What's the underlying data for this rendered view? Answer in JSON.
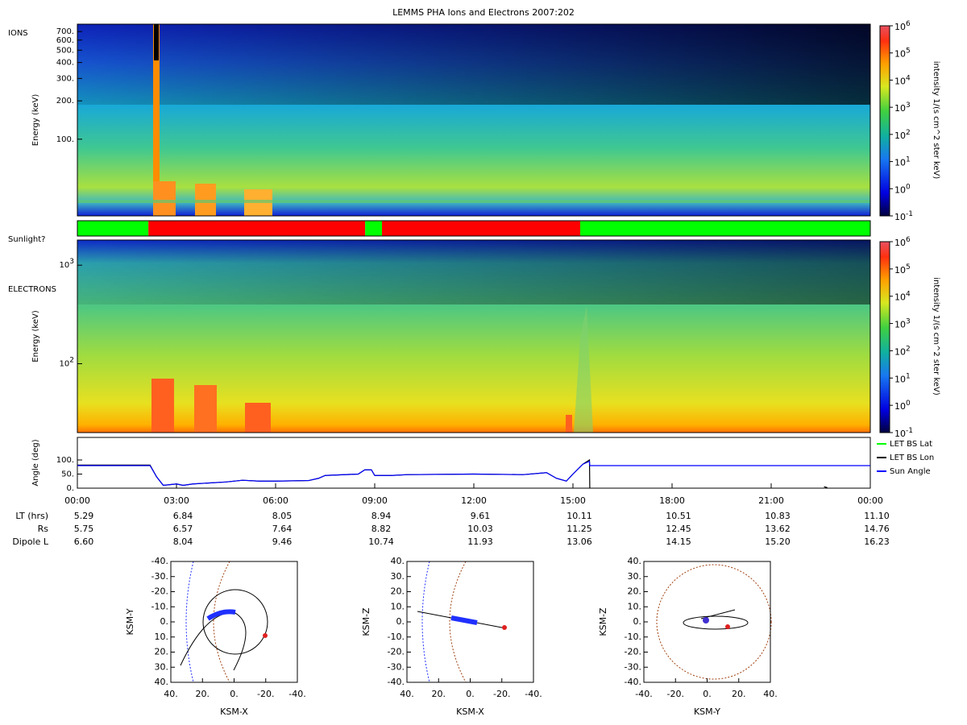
{
  "title": "LEMMS PHA Ions and Electrons  2007:202",
  "chart_data": [
    {
      "type": "spectrogram",
      "panel_label": "IONS",
      "ylabel": "Energy (keV)",
      "log_scale": true,
      "ylim": [
        25,
        800
      ],
      "yticks": [
        {
          "value": 100,
          "label": "100."
        },
        {
          "value": 200,
          "label": "200."
        },
        {
          "value": 300,
          "label": "300."
        },
        {
          "value": 400,
          "label": "400."
        },
        {
          "value": 500,
          "label": "500."
        },
        {
          "value": 600,
          "label": "600."
        },
        {
          "value": 700,
          "label": "700."
        }
      ],
      "colorbar": {
        "label": "intensity 1/(s cm^2 ster keV)",
        "log_scale": true,
        "lim": [
          0.1,
          1000000
        ],
        "ticks": [
          {
            "value": 0.1,
            "label": "10^-1"
          },
          {
            "value": 1,
            "label": "10^0"
          },
          {
            "value": 10,
            "label": "10^1"
          },
          {
            "value": 100,
            "label": "10^2"
          },
          {
            "value": 1000,
            "label": "10^3"
          },
          {
            "value": 10000,
            "label": "10^4"
          },
          {
            "value": 100000,
            "label": "10^5"
          },
          {
            "value": 1000000,
            "label": "10^6"
          }
        ]
      }
    },
    {
      "type": "status_bar",
      "label": "Sunlight?",
      "xlim": [
        0,
        24
      ],
      "segments": [
        {
          "start": 0,
          "end": 2.15,
          "color": "#00ff00"
        },
        {
          "start": 2.15,
          "end": 8.71,
          "color": "#ff0000"
        },
        {
          "start": 8.71,
          "end": 9.22,
          "color": "#00ff00"
        },
        {
          "start": 9.22,
          "end": 15.22,
          "color": "#ff0000"
        },
        {
          "start": 15.22,
          "end": 24,
          "color": "#00ff00"
        }
      ]
    },
    {
      "type": "spectrogram",
      "panel_label": "ELECTRONS",
      "ylabel": "Energy (keV)",
      "log_scale": true,
      "ylim": [
        20,
        1800
      ],
      "yticks": [
        {
          "value": 100,
          "label": "10^2"
        },
        {
          "value": 1000,
          "label": "10^3"
        }
      ],
      "colorbar": {
        "label": "intensity 1/(s cm^2 ster keV)",
        "log_scale": true,
        "lim": [
          0.1,
          1000000
        ],
        "ticks": [
          {
            "value": 0.1,
            "label": "10^-1"
          },
          {
            "value": 1,
            "label": "10^0"
          },
          {
            "value": 10,
            "label": "10^1"
          },
          {
            "value": 100,
            "label": "10^2"
          },
          {
            "value": 1000,
            "label": "10^3"
          },
          {
            "value": 10000,
            "label": "10^4"
          },
          {
            "value": 100000,
            "label": "10^5"
          },
          {
            "value": 1000000,
            "label": "10^6"
          }
        ]
      }
    },
    {
      "type": "line",
      "ylabel": "Angle (deg)",
      "xlim": [
        0,
        24
      ],
      "ylim": [
        0,
        180
      ],
      "yticks": [
        {
          "value": 0,
          "label": "0."
        },
        {
          "value": 50,
          "label": "50."
        },
        {
          "value": 100,
          "label": "100."
        }
      ],
      "xticks": [
        {
          "value": 0,
          "label": "00:00"
        },
        {
          "value": 3,
          "label": "03:00"
        },
        {
          "value": 6,
          "label": "06:00"
        },
        {
          "value": 9,
          "label": "09:00"
        },
        {
          "value": 12,
          "label": "12:00"
        },
        {
          "value": 15,
          "label": "15:00"
        },
        {
          "value": 18,
          "label": "18:00"
        },
        {
          "value": 21,
          "label": "21:00"
        },
        {
          "value": 24,
          "label": "00:00"
        }
      ],
      "legend": "right",
      "x": [
        0,
        2.2,
        2.4,
        2.6,
        3.0,
        3.2,
        3.5,
        4.5,
        5.0,
        5.5,
        6.0,
        7.0,
        7.3,
        7.5,
        8.5,
        8.7,
        8.9,
        9.0,
        9.5,
        10,
        12,
        13.5,
        14.2,
        14.5,
        14.8,
        15.0,
        15.3,
        15.5,
        15.51,
        20,
        22.6,
        22.7,
        24
      ],
      "series": [
        {
          "name": "LET BS Lat",
          "color": "#00ff00",
          "values": [
            null,
            null,
            null,
            null,
            null,
            null,
            null,
            null,
            null,
            null,
            null,
            null,
            null,
            null,
            null,
            null,
            null,
            null,
            null,
            null,
            null,
            null,
            null,
            null,
            null,
            null,
            null,
            null,
            null,
            null,
            null,
            null,
            null
          ]
        },
        {
          "name": "LET BS Lon",
          "color": "#000000",
          "values": [
            82,
            82,
            40,
            10,
            15,
            10,
            15,
            22,
            28,
            25,
            25,
            27,
            35,
            45,
            50,
            65,
            65,
            45,
            45,
            48,
            50,
            48,
            55,
            35,
            25,
            50,
            85,
            100,
            0,
            null,
            5,
            2,
            null
          ]
        },
        {
          "name": "Sun Angle",
          "color": "#0000ff",
          "values": [
            80,
            80,
            40,
            10,
            15,
            10,
            15,
            22,
            28,
            25,
            25,
            27,
            35,
            45,
            50,
            65,
            65,
            45,
            45,
            48,
            50,
            48,
            55,
            35,
            25,
            50,
            85,
            95,
            80,
            80,
            80,
            80,
            80
          ]
        }
      ]
    },
    {
      "type": "orbit",
      "xlabel": "KSM-X",
      "ylabel": "KSM-Y",
      "xlim": [
        40,
        -40
      ],
      "ylim": [
        40,
        -40
      ],
      "xticks": [
        {
          "value": 40,
          "label": "40."
        },
        {
          "value": 20,
          "label": "20."
        },
        {
          "value": 0,
          "label": "0."
        },
        {
          "value": -20,
          "label": "-20."
        },
        {
          "value": -40,
          "label": "-40."
        }
      ],
      "yticks": [
        {
          "value": -40,
          "label": "-40."
        },
        {
          "value": -30,
          "label": "-30."
        },
        {
          "value": -20,
          "label": "-20."
        },
        {
          "value": -10,
          "label": "-10."
        },
        {
          "value": 0,
          "label": "0."
        },
        {
          "value": 10,
          "label": "10."
        },
        {
          "value": 20,
          "label": "20."
        },
        {
          "value": 30,
          "label": "30."
        },
        {
          "value": 40,
          "label": "40."
        }
      ]
    },
    {
      "type": "orbit",
      "xlabel": "KSM-X",
      "ylabel": "KSM-Z",
      "xlim": [
        40,
        -40
      ],
      "ylim": [
        -40,
        40
      ],
      "xticks": [
        {
          "value": 40,
          "label": "40."
        },
        {
          "value": 20,
          "label": "20."
        },
        {
          "value": 0,
          "label": "0."
        },
        {
          "value": -20,
          "label": "-20."
        },
        {
          "value": -40,
          "label": "-40."
        }
      ],
      "yticks": [
        {
          "value": 40,
          "label": "40."
        },
        {
          "value": 30,
          "label": "30."
        },
        {
          "value": 20,
          "label": "20."
        },
        {
          "value": 10,
          "label": "10."
        },
        {
          "value": 0,
          "label": "0."
        },
        {
          "value": -10,
          "label": "-10."
        },
        {
          "value": -20,
          "label": "-20."
        },
        {
          "value": -30,
          "label": "-30."
        },
        {
          "value": -40,
          "label": "-40."
        }
      ]
    },
    {
      "type": "orbit",
      "xlabel": "KSM-Y",
      "ylabel": "KSM-Z",
      "xlim": [
        -40,
        40
      ],
      "ylim": [
        -40,
        40
      ],
      "xticks": [
        {
          "value": -40,
          "label": "-40."
        },
        {
          "value": -20,
          "label": "-20."
        },
        {
          "value": 0,
          "label": "0."
        },
        {
          "value": 20,
          "label": "20."
        },
        {
          "value": 40,
          "label": "40."
        }
      ],
      "yticks": [
        {
          "value": 40,
          "label": "40."
        },
        {
          "value": 30,
          "label": "30."
        },
        {
          "value": 20,
          "label": "20."
        },
        {
          "value": 10,
          "label": "10."
        },
        {
          "value": 0,
          "label": "0."
        },
        {
          "value": -10,
          "label": "-10."
        },
        {
          "value": -20,
          "label": "-20."
        },
        {
          "value": -30,
          "label": "-30."
        },
        {
          "value": -40,
          "label": "-40."
        }
      ]
    }
  ],
  "ephemeris": {
    "rows": [
      {
        "label": "LT (hrs)",
        "values": [
          "5.29",
          "6.84",
          "8.05",
          "8.94",
          "9.61",
          "10.11",
          "10.51",
          "10.83",
          "11.10"
        ]
      },
      {
        "label": "Rs",
        "values": [
          "5.75",
          "6.57",
          "7.64",
          "8.82",
          "10.03",
          "11.25",
          "12.45",
          "13.62",
          "14.76"
        ]
      },
      {
        "label": "Dipole L",
        "values": [
          "6.60",
          "8.04",
          "9.46",
          "10.74",
          "11.93",
          "13.06",
          "14.15",
          "15.20",
          "16.23"
        ]
      }
    ]
  }
}
